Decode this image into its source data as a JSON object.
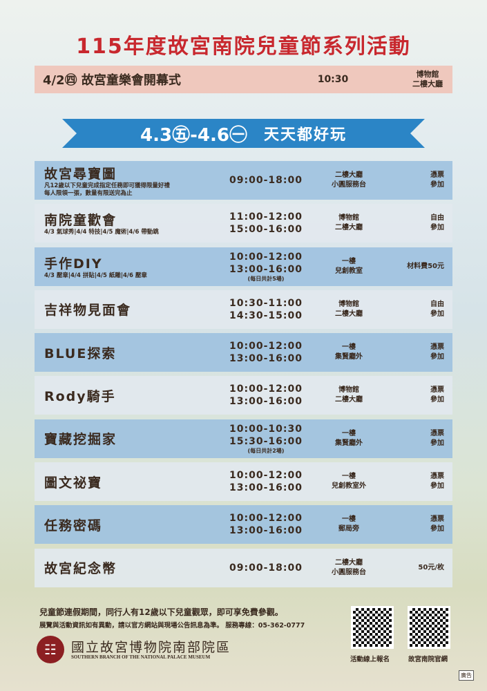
{
  "title": "115年度故宮南院兒童節系列活動",
  "opening": {
    "date": "4/2㊃ 故宮童樂會開幕式",
    "time": "10:30",
    "place": [
      "博物館",
      "二樓大廳"
    ]
  },
  "banner": {
    "dates": "4.3㊄-4.6㊀",
    "slogan": "天天都好玩"
  },
  "events": [
    {
      "name": "故宮尋寶圖",
      "sub": [
        "凡12歲以下兒童完成指定任務即可獲得限量好禮",
        "每人限領一張，數量有限送完為止"
      ],
      "times": [
        "09:00-18:00"
      ],
      "note": "",
      "place": [
        "二樓大廳",
        "小圓服務台"
      ],
      "fee": [
        "憑票",
        "參加"
      ]
    },
    {
      "name": "南院童歡會",
      "sub": [
        "4/3 氣球秀|4/4 特技|4/5 魔術|4/6 帶動跳"
      ],
      "times": [
        "11:00-12:00",
        "15:00-16:00"
      ],
      "note": "",
      "place": [
        "博物館",
        "二樓大廳"
      ],
      "fee": [
        "自由",
        "參加"
      ]
    },
    {
      "name": "手作DIY",
      "sub": [
        "4/3 壓章|4/4 拼貼|4/5 紙雕|4/6 壓章"
      ],
      "times": [
        "10:00-12:00",
        "13:00-16:00"
      ],
      "note": "(每日共計5場)",
      "place": [
        "一樓",
        "兒創教室"
      ],
      "fee": [
        "材料費50元"
      ]
    },
    {
      "name": "吉祥物見面會",
      "sub": [],
      "times": [
        "10:30-11:00",
        "14:30-15:00"
      ],
      "note": "",
      "place": [
        "博物館",
        "二樓大廳"
      ],
      "fee": [
        "自由",
        "參加"
      ]
    },
    {
      "name": "BLUE探索",
      "sub": [],
      "times": [
        "10:00-12:00",
        "13:00-16:00"
      ],
      "note": "",
      "place": [
        "一樓",
        "集賢廳外"
      ],
      "fee": [
        "憑票",
        "參加"
      ]
    },
    {
      "name": "Rody騎手",
      "sub": [],
      "times": [
        "10:00-12:00",
        "13:00-16:00"
      ],
      "note": "",
      "place": [
        "博物館",
        "二樓大廳"
      ],
      "fee": [
        "憑票",
        "參加"
      ]
    },
    {
      "name": "寶藏挖掘家",
      "sub": [],
      "times": [
        "10:00-10:30",
        "15:30-16:00"
      ],
      "note": "(每日共計2場)",
      "place": [
        "一樓",
        "集賢廳外"
      ],
      "fee": [
        "憑票",
        "參加"
      ]
    },
    {
      "name": "圖文祕寶",
      "sub": [],
      "times": [
        "10:00-12:00",
        "13:00-16:00"
      ],
      "note": "",
      "place": [
        "一樓",
        "兒創教室外"
      ],
      "fee": [
        "憑票",
        "參加"
      ]
    },
    {
      "name": "任務密碼",
      "sub": [],
      "times": [
        "10:00-12:00",
        "13:00-16:00"
      ],
      "note": "",
      "place": [
        "一樓",
        "郵局旁"
      ],
      "fee": [
        "憑票",
        "參加"
      ]
    },
    {
      "name": "故宮紀念幣",
      "sub": [],
      "times": [
        "09:00-18:00"
      ],
      "note": "",
      "place": [
        "二樓大廳",
        "小圓服務台"
      ],
      "fee": [
        "50元/枚"
      ]
    }
  ],
  "footer": {
    "line1": "兒童節連假期間，同行人有12歲以下兒童觀眾，即可享免費參觀。",
    "line2": "展覽與活動資訊如有異動，請以官方網站與現場公告訊息為準。 服務專線：05-362-0777",
    "org": "國立故宮博物院南部院區",
    "org_en": "SOUTHERN BRANCH OF THE NATIONAL PALACE MUSEUM",
    "qr1": "活動線上報名",
    "qr2": "故宮南院官網",
    "ad": "廣告"
  },
  "colors": {
    "title": "#c8282e",
    "banner": "#2b85c6",
    "row": "#a0c2e0",
    "row_alt": "#e2e8ee"
  }
}
